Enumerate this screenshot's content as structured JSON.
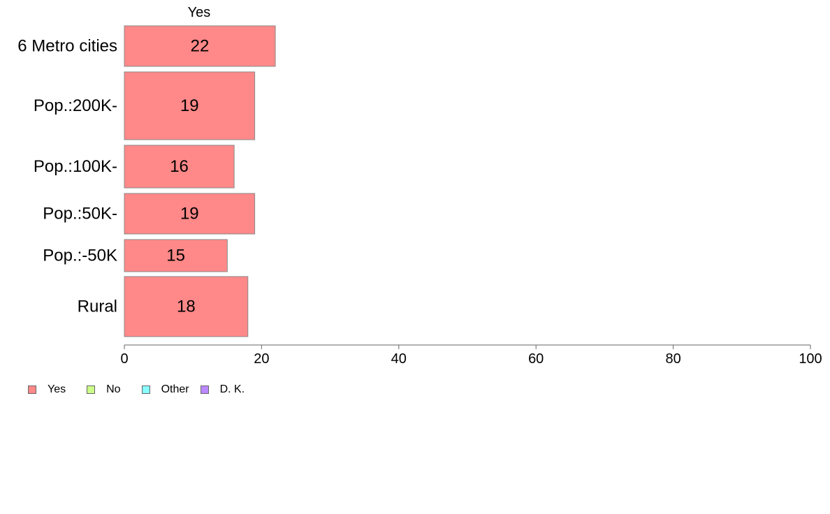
{
  "chart_data": {
    "type": "bar",
    "orientation": "horizontal",
    "stacked": true,
    "segment_header": "Yes",
    "categories": [
      "6 Metro cities",
      "Pop.:200K-",
      "Pop.:100K-",
      "Pop.:50K-",
      "Pop.:-50K",
      "Rural"
    ],
    "series": [
      {
        "name": "Yes",
        "values": [
          22,
          19,
          16,
          19,
          15,
          18
        ],
        "color": "#ff8888"
      },
      {
        "name": "No",
        "values": [
          0,
          0,
          0,
          0,
          0,
          0
        ],
        "color": "#ccff88"
      },
      {
        "name": "Other",
        "values": [
          0,
          0,
          0,
          0,
          0,
          0
        ],
        "color": "#88ffff"
      },
      {
        "name": "D. K.",
        "values": [
          0,
          0,
          0,
          0,
          0,
          0
        ],
        "color": "#bb88ff"
      }
    ],
    "xlim": [
      0,
      100
    ],
    "xticks": [
      0,
      20,
      40,
      60,
      80,
      100
    ],
    "grid": false,
    "legend_position": "bottom-left"
  }
}
